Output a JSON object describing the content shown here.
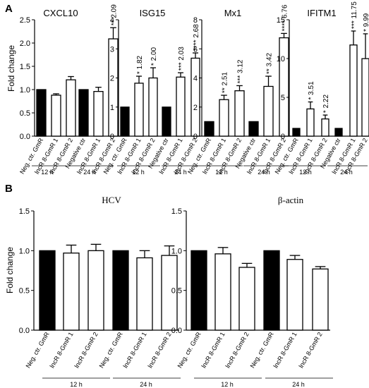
{
  "panel_labels": [
    "A",
    "B"
  ],
  "y_axis_label": "Fold change",
  "category_labels": [
    "Neg. ctr. GmR",
    "lncR 8-GmR 1",
    "lncR 8-GmR 2",
    "Negative ctr",
    "lncR 8-GmR 1",
    "lncR 8-GmR 2"
  ],
  "category_labels_b": [
    "Neg. ctr. GmR",
    "lncR 8-GmR 1",
    "lncR 8-GmR 2",
    "Neg. ctr. GmR",
    "lncR 8-GmR 1",
    "lncR 8-GmR 2"
  ],
  "group_labels": [
    "12 h",
    "24 h"
  ],
  "colors": {
    "control_fill": "#000000",
    "treated_fill": "#ffffff",
    "stroke": "#000000"
  },
  "chart_data": [
    {
      "type": "bar",
      "panel": "A",
      "title": "CXCL10",
      "ylabel": "Fold change",
      "ylim": [
        0,
        2.5
      ],
      "yticks": [
        "0.0",
        "0.5",
        "1.0",
        "1.5",
        "2.0",
        "2.5"
      ],
      "values": [
        1.0,
        0.88,
        1.21,
        1.0,
        0.96,
        2.09
      ],
      "errors": [
        0,
        0.03,
        0.07,
        0,
        0.09,
        0.24
      ],
      "annotations": [
        "",
        "",
        "",
        "",
        "",
        "** 2.09"
      ]
    },
    {
      "type": "bar",
      "panel": "A",
      "title": "ISG15",
      "ylim": [
        0,
        4
      ],
      "yticks": [
        "0",
        "1",
        "2",
        "3",
        "4"
      ],
      "values": [
        1.0,
        1.82,
        2.0,
        1.0,
        2.03,
        2.68
      ],
      "errors": [
        0,
        0.24,
        0.35,
        0,
        0.15,
        0.18
      ],
      "annotations": [
        "",
        "* 1.82",
        "* 2.00",
        "",
        "*** 2.03",
        "**** 2.68"
      ]
    },
    {
      "type": "bar",
      "panel": "A",
      "title": "Mx1",
      "ylim": [
        0,
        8
      ],
      "yticks": [
        "0",
        "2",
        "4",
        "6",
        "8"
      ],
      "values": [
        1.0,
        2.51,
        3.12,
        1.0,
        3.42,
        6.76
      ],
      "errors": [
        0,
        0.3,
        0.35,
        0,
        0.7,
        0.3
      ],
      "annotations": [
        "",
        "** 2.51",
        "*** 3.12",
        "",
        "** 3.42",
        "**** 6.76"
      ]
    },
    {
      "type": "bar",
      "panel": "A",
      "title": "IFITM1",
      "ylim": [
        0,
        15
      ],
      "yticks": [
        "0",
        "5",
        "10",
        "15"
      ],
      "values": [
        1.0,
        3.51,
        2.22,
        1.0,
        11.75,
        9.99
      ],
      "errors": [
        0,
        0.9,
        0.5,
        0,
        1.8,
        3.2
      ],
      "annotations": [
        "",
        "* 3.51",
        "* 2.22",
        "",
        "*** 11.75",
        "* 9.99"
      ]
    },
    {
      "type": "bar",
      "panel": "B",
      "title": "HCV",
      "ylabel": "Fold change",
      "ylim": [
        0,
        1.5
      ],
      "yticks": [
        "0.0",
        "0.5",
        "1.0",
        "1.5"
      ],
      "values": [
        1.0,
        0.97,
        1.0,
        1.0,
        0.91,
        0.94
      ],
      "errors": [
        0,
        0.1,
        0.08,
        0,
        0.09,
        0.12
      ],
      "annotations": [
        "",
        "",
        "",
        "",
        "",
        ""
      ]
    },
    {
      "type": "bar",
      "panel": "B",
      "title": "β-actin",
      "ylim": [
        0,
        1.5
      ],
      "yticks": [
        "0.0",
        "0.5",
        "1.0",
        "1.5"
      ],
      "values": [
        1.0,
        0.96,
        0.79,
        1.0,
        0.89,
        0.77
      ],
      "errors": [
        0,
        0.08,
        0.05,
        0,
        0.05,
        0.03
      ],
      "annotations": [
        "",
        "",
        "",
        "",
        "",
        ""
      ]
    }
  ]
}
